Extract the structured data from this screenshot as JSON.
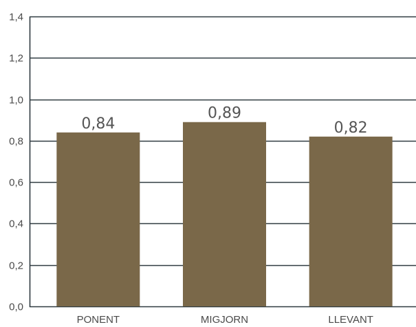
{
  "chart_data": {
    "type": "bar",
    "title": "",
    "xlabel": "",
    "ylabel": "",
    "categories": [
      "PONENT",
      "MIGJORN",
      "LLEVANT"
    ],
    "values": [
      0.84,
      0.89,
      0.82
    ],
    "value_labels": [
      "0,84",
      "0,89",
      "0,82"
    ],
    "ylim": [
      0,
      1.4
    ],
    "yticks": [
      0,
      0.2,
      0.4,
      0.6,
      0.8,
      1.0,
      1.2,
      1.4
    ],
    "ytick_labels": [
      "0,0",
      "0,2",
      "0,4",
      "0,6",
      "0,8",
      "1,0",
      "1,2",
      "1,4"
    ],
    "grid": true,
    "colors": {
      "bar": "#7a6849",
      "grid": "#2f3a40",
      "axis": "#2f3a40"
    }
  }
}
